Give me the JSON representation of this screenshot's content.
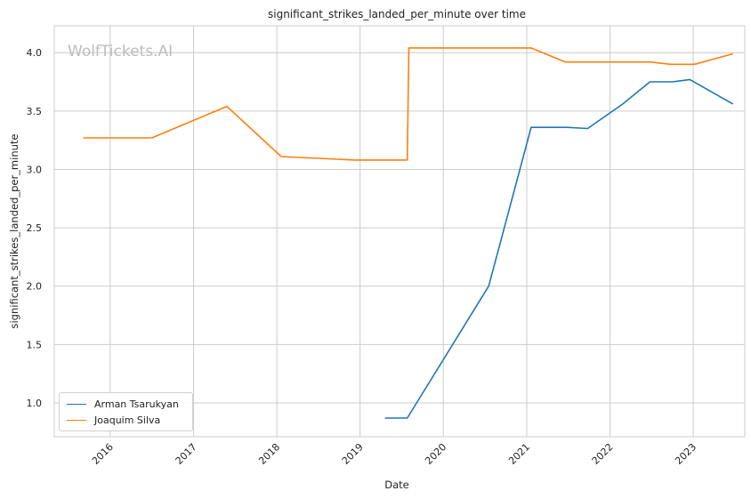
{
  "chart_data": {
    "type": "line",
    "title": "significant_strikes_landed_per_minute over time",
    "xlabel": "Date",
    "ylabel": "significant_strikes_landed_per_minute",
    "xlim": [
      "2015-05-01",
      "2023-08-15"
    ],
    "ylim": [
      0.71,
      4.23
    ],
    "xticks": [
      "2016",
      "2017",
      "2018",
      "2019",
      "2020",
      "2021",
      "2022",
      "2023"
    ],
    "yticks": [
      "1.0",
      "1.5",
      "2.0",
      "2.5",
      "3.0",
      "3.5",
      "4.0"
    ],
    "grid": true,
    "legend_position": "lower-left",
    "watermark": "WolfTickets.AI",
    "series": [
      {
        "name": "Arman Tsarukyan",
        "color": "#1f77b4",
        "points": [
          {
            "x": "2019-04-20",
            "y": 0.87
          },
          {
            "x": "2019-07-27",
            "y": 0.87
          },
          {
            "x": "2020-07-18",
            "y": 2.0
          },
          {
            "x": "2021-01-20",
            "y": 3.36
          },
          {
            "x": "2021-06-26",
            "y": 3.36
          },
          {
            "x": "2021-09-25",
            "y": 3.35
          },
          {
            "x": "2022-02-26",
            "y": 3.56
          },
          {
            "x": "2022-06-25",
            "y": 3.75
          },
          {
            "x": "2022-10-01",
            "y": 3.75
          },
          {
            "x": "2022-12-17",
            "y": 3.77
          },
          {
            "x": "2023-06-24",
            "y": 3.56
          }
        ]
      },
      {
        "name": "Joaquim Silva",
        "color": "#ff7f0e",
        "points": [
          {
            "x": "2015-09-05",
            "y": 3.27
          },
          {
            "x": "2016-07-02",
            "y": 3.27
          },
          {
            "x": "2017-05-27",
            "y": 3.54
          },
          {
            "x": "2018-01-20",
            "y": 3.11
          },
          {
            "x": "2018-12-08",
            "y": 3.08
          },
          {
            "x": "2019-07-27",
            "y": 3.08
          },
          {
            "x": "2019-08-03",
            "y": 4.04
          },
          {
            "x": "2021-01-20",
            "y": 4.04
          },
          {
            "x": "2021-06-19",
            "y": 3.92
          },
          {
            "x": "2022-06-25",
            "y": 3.92
          },
          {
            "x": "2022-09-24",
            "y": 3.9
          },
          {
            "x": "2023-01-07",
            "y": 3.9
          },
          {
            "x": "2023-06-24",
            "y": 3.99
          }
        ]
      }
    ]
  }
}
